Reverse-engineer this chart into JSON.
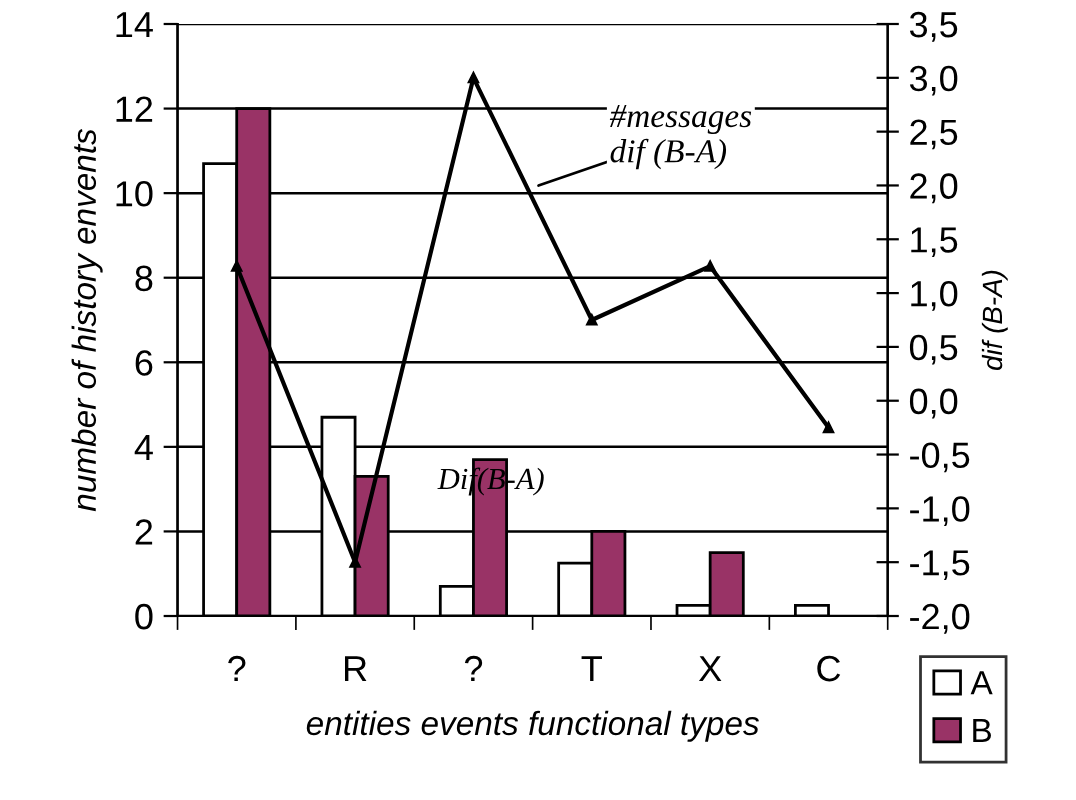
{
  "chart_data": {
    "type": "bar",
    "xlabel": "entities events functional types",
    "ylabel": "number of history envents",
    "y2label": "dif (B-A)",
    "categories": [
      "?",
      "R",
      "?",
      "T",
      "X",
      "C"
    ],
    "series": [
      {
        "name": "A",
        "color": "#ffffff",
        "values": [
          10.7,
          4.7,
          0.7,
          1.25,
          0.25,
          0.25
        ]
      },
      {
        "name": "B",
        "color": "#993366",
        "values": [
          12,
          3.3,
          3.7,
          2.0,
          1.5,
          null
        ]
      },
      {
        "type": "line",
        "axis": "y2",
        "color": "#000000",
        "marker": "triangle",
        "values": [
          1.25,
          -1.5,
          3.0,
          0.75,
          1.25,
          -0.25
        ]
      }
    ],
    "ylim": [
      0,
      14
    ],
    "yticks": [
      0,
      2,
      4,
      6,
      8,
      10,
      12,
      14
    ],
    "y2lim": [
      -2.0,
      3.5
    ],
    "y2ticks": [
      {
        "value": -2.0,
        "label": "-2,0"
      },
      {
        "value": -1.5,
        "label": "-1,5"
      },
      {
        "value": -1.0,
        "label": "-1,0"
      },
      {
        "value": -0.5,
        "label": "-0,5"
      },
      {
        "value": 0.0,
        "label": "0,0"
      },
      {
        "value": 0.5,
        "label": "0,5"
      },
      {
        "value": 1.0,
        "label": "1,0"
      },
      {
        "value": 1.5,
        "label": "1,5"
      },
      {
        "value": 2.0,
        "label": "2,0"
      },
      {
        "value": 2.5,
        "label": "2,5"
      },
      {
        "value": 3.0,
        "label": "3,0"
      },
      {
        "value": 3.5,
        "label": "3,5"
      }
    ],
    "annotations": [
      "#messages\ndif (B-A)",
      "Dif(B-A)"
    ],
    "grid": "y",
    "legend": "bottom right"
  }
}
